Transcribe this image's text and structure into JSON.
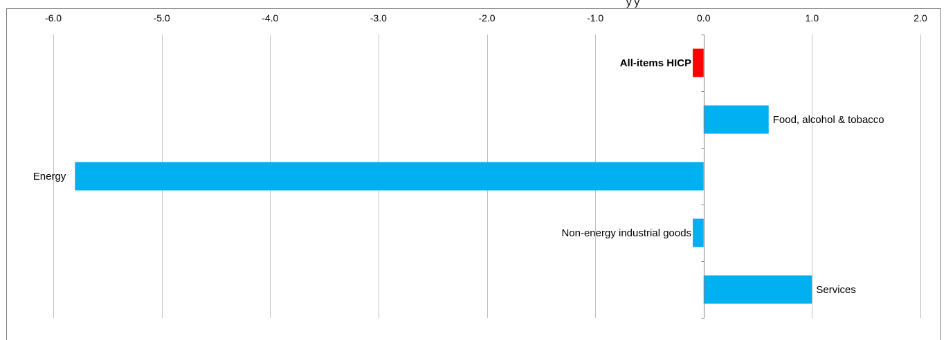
{
  "chart_data": {
    "type": "bar",
    "orientation": "horizontal",
    "title_fragment": "y                        y",
    "categories": [
      "All-items HICP",
      "Food, alcohol & tobacco",
      "Energy",
      "Non-energy industrial goods",
      "Services"
    ],
    "values": [
      -0.1,
      0.6,
      -5.8,
      -0.1,
      1.0
    ],
    "highlight": [
      true,
      false,
      false,
      false,
      false
    ],
    "x_ticks": [
      "-6.0",
      "-5.0",
      "-4.0",
      "-3.0",
      "-2.0",
      "-1.0",
      "0.0",
      "1.0",
      "2.0"
    ],
    "xlim": [
      -6.0,
      2.0
    ],
    "xlabel": "",
    "ylabel": "",
    "grid": true,
    "axis_position": "top",
    "colors": {
      "bar": "#00b0f0",
      "highlight": "#ff0000",
      "grid": "#c0c0c0",
      "frame": "#808080",
      "axis": "#808080"
    }
  }
}
